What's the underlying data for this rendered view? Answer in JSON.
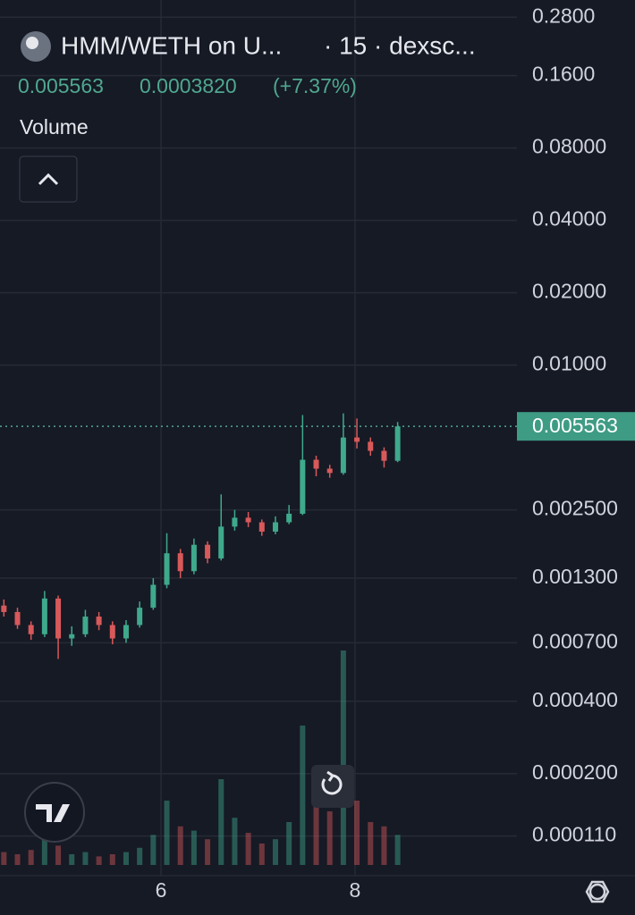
{
  "header": {
    "title": "HMM/WETH on U...",
    "meta": "· 15 · dexsc...",
    "change": "0.0003820",
    "change_pct": "(+7.37%)",
    "study": "Volume"
  },
  "chart_data": {
    "type": "candlestick",
    "x": [
      4.38,
      4.52,
      4.66,
      4.8,
      4.94,
      5.08,
      5.22,
      5.36,
      5.5,
      5.64,
      5.78,
      5.92,
      6.06,
      6.2,
      6.34,
      6.48,
      6.62,
      6.76,
      6.9,
      7.04,
      7.18,
      7.32,
      7.46,
      7.6,
      7.74,
      7.88,
      8.02,
      8.16,
      8.3,
      8.44
    ],
    "open": [
      0.001,
      0.00094,
      0.00083,
      0.00076,
      0.00107,
      0.00073,
      0.00076,
      0.0009,
      0.00083,
      0.00073,
      0.00083,
      0.00098,
      0.00122,
      0.00165,
      0.00139,
      0.00179,
      0.00157,
      0.00213,
      0.00232,
      0.00222,
      0.00203,
      0.00222,
      0.00241,
      0.00404,
      0.00371,
      0.00356,
      0.005,
      0.0048,
      0.0044,
      0.004
    ],
    "high": [
      0.00106,
      0.00098,
      0.00086,
      0.00115,
      0.0011,
      0.00082,
      0.00096,
      0.00094,
      0.00086,
      0.00087,
      0.00104,
      0.0013,
      0.002,
      0.00172,
      0.0019,
      0.00185,
      0.0029,
      0.0025,
      0.00245,
      0.00228,
      0.00235,
      0.00262,
      0.0062,
      0.0042,
      0.00385,
      0.0063,
      0.006,
      0.005,
      0.00455,
      0.0058
    ],
    "low": [
      0.0009,
      0.0008,
      0.00072,
      0.00074,
      0.0006,
      0.00068,
      0.00074,
      0.00079,
      0.00069,
      0.0007,
      0.00081,
      0.00096,
      0.00118,
      0.0013,
      0.00135,
      0.0015,
      0.00154,
      0.00205,
      0.00212,
      0.00195,
      0.00198,
      0.00218,
      0.00238,
      0.00345,
      0.0034,
      0.0035,
      0.0045,
      0.0042,
      0.00375,
      0.00395
    ],
    "close": [
      0.00094,
      0.00083,
      0.00076,
      0.00107,
      0.00073,
      0.00076,
      0.0009,
      0.00083,
      0.00073,
      0.00083,
      0.00098,
      0.00122,
      0.00165,
      0.00139,
      0.00179,
      0.00157,
      0.00213,
      0.00232,
      0.00222,
      0.00203,
      0.00222,
      0.00241,
      0.00404,
      0.00371,
      0.00356,
      0.005,
      0.0048,
      0.0044,
      0.004,
      0.005563
    ],
    "volume": [
      6,
      5,
      7,
      12,
      9,
      5,
      6,
      4,
      5,
      6,
      8,
      14,
      30,
      18,
      16,
      12,
      40,
      22,
      15,
      10,
      12,
      20,
      65,
      35,
      25,
      100,
      30,
      20,
      18,
      14
    ],
    "vlim": [
      0,
      100
    ],
    "up_color": "#3fa98c",
    "down_color": "#d8595a",
    "log_y": true,
    "ylim": [
      8.2e-05,
      0.33
    ],
    "yticks": [
      {
        "value": 0.28,
        "label": "0.2800"
      },
      {
        "value": 0.16,
        "label": "0.1600"
      },
      {
        "value": 0.08,
        "label": "0.08000"
      },
      {
        "value": 0.04,
        "label": "0.04000"
      },
      {
        "value": 0.02,
        "label": "0.02000"
      },
      {
        "value": 0.01,
        "label": "0.01000"
      },
      {
        "value": 0.0025,
        "label": "0.002500"
      },
      {
        "value": 0.0013,
        "label": "0.001300"
      },
      {
        "value": 0.0007,
        "label": "0.000700"
      },
      {
        "value": 0.0004,
        "label": "0.000400"
      },
      {
        "value": 0.0002,
        "label": "0.000200"
      },
      {
        "value": 0.00011,
        "label": "0.000110"
      }
    ],
    "xlim": [
      4.34,
      9.67
    ],
    "xticks": [
      6,
      8
    ],
    "grid": true,
    "last_price": {
      "value": 0.005563,
      "label": "0.005563"
    }
  }
}
